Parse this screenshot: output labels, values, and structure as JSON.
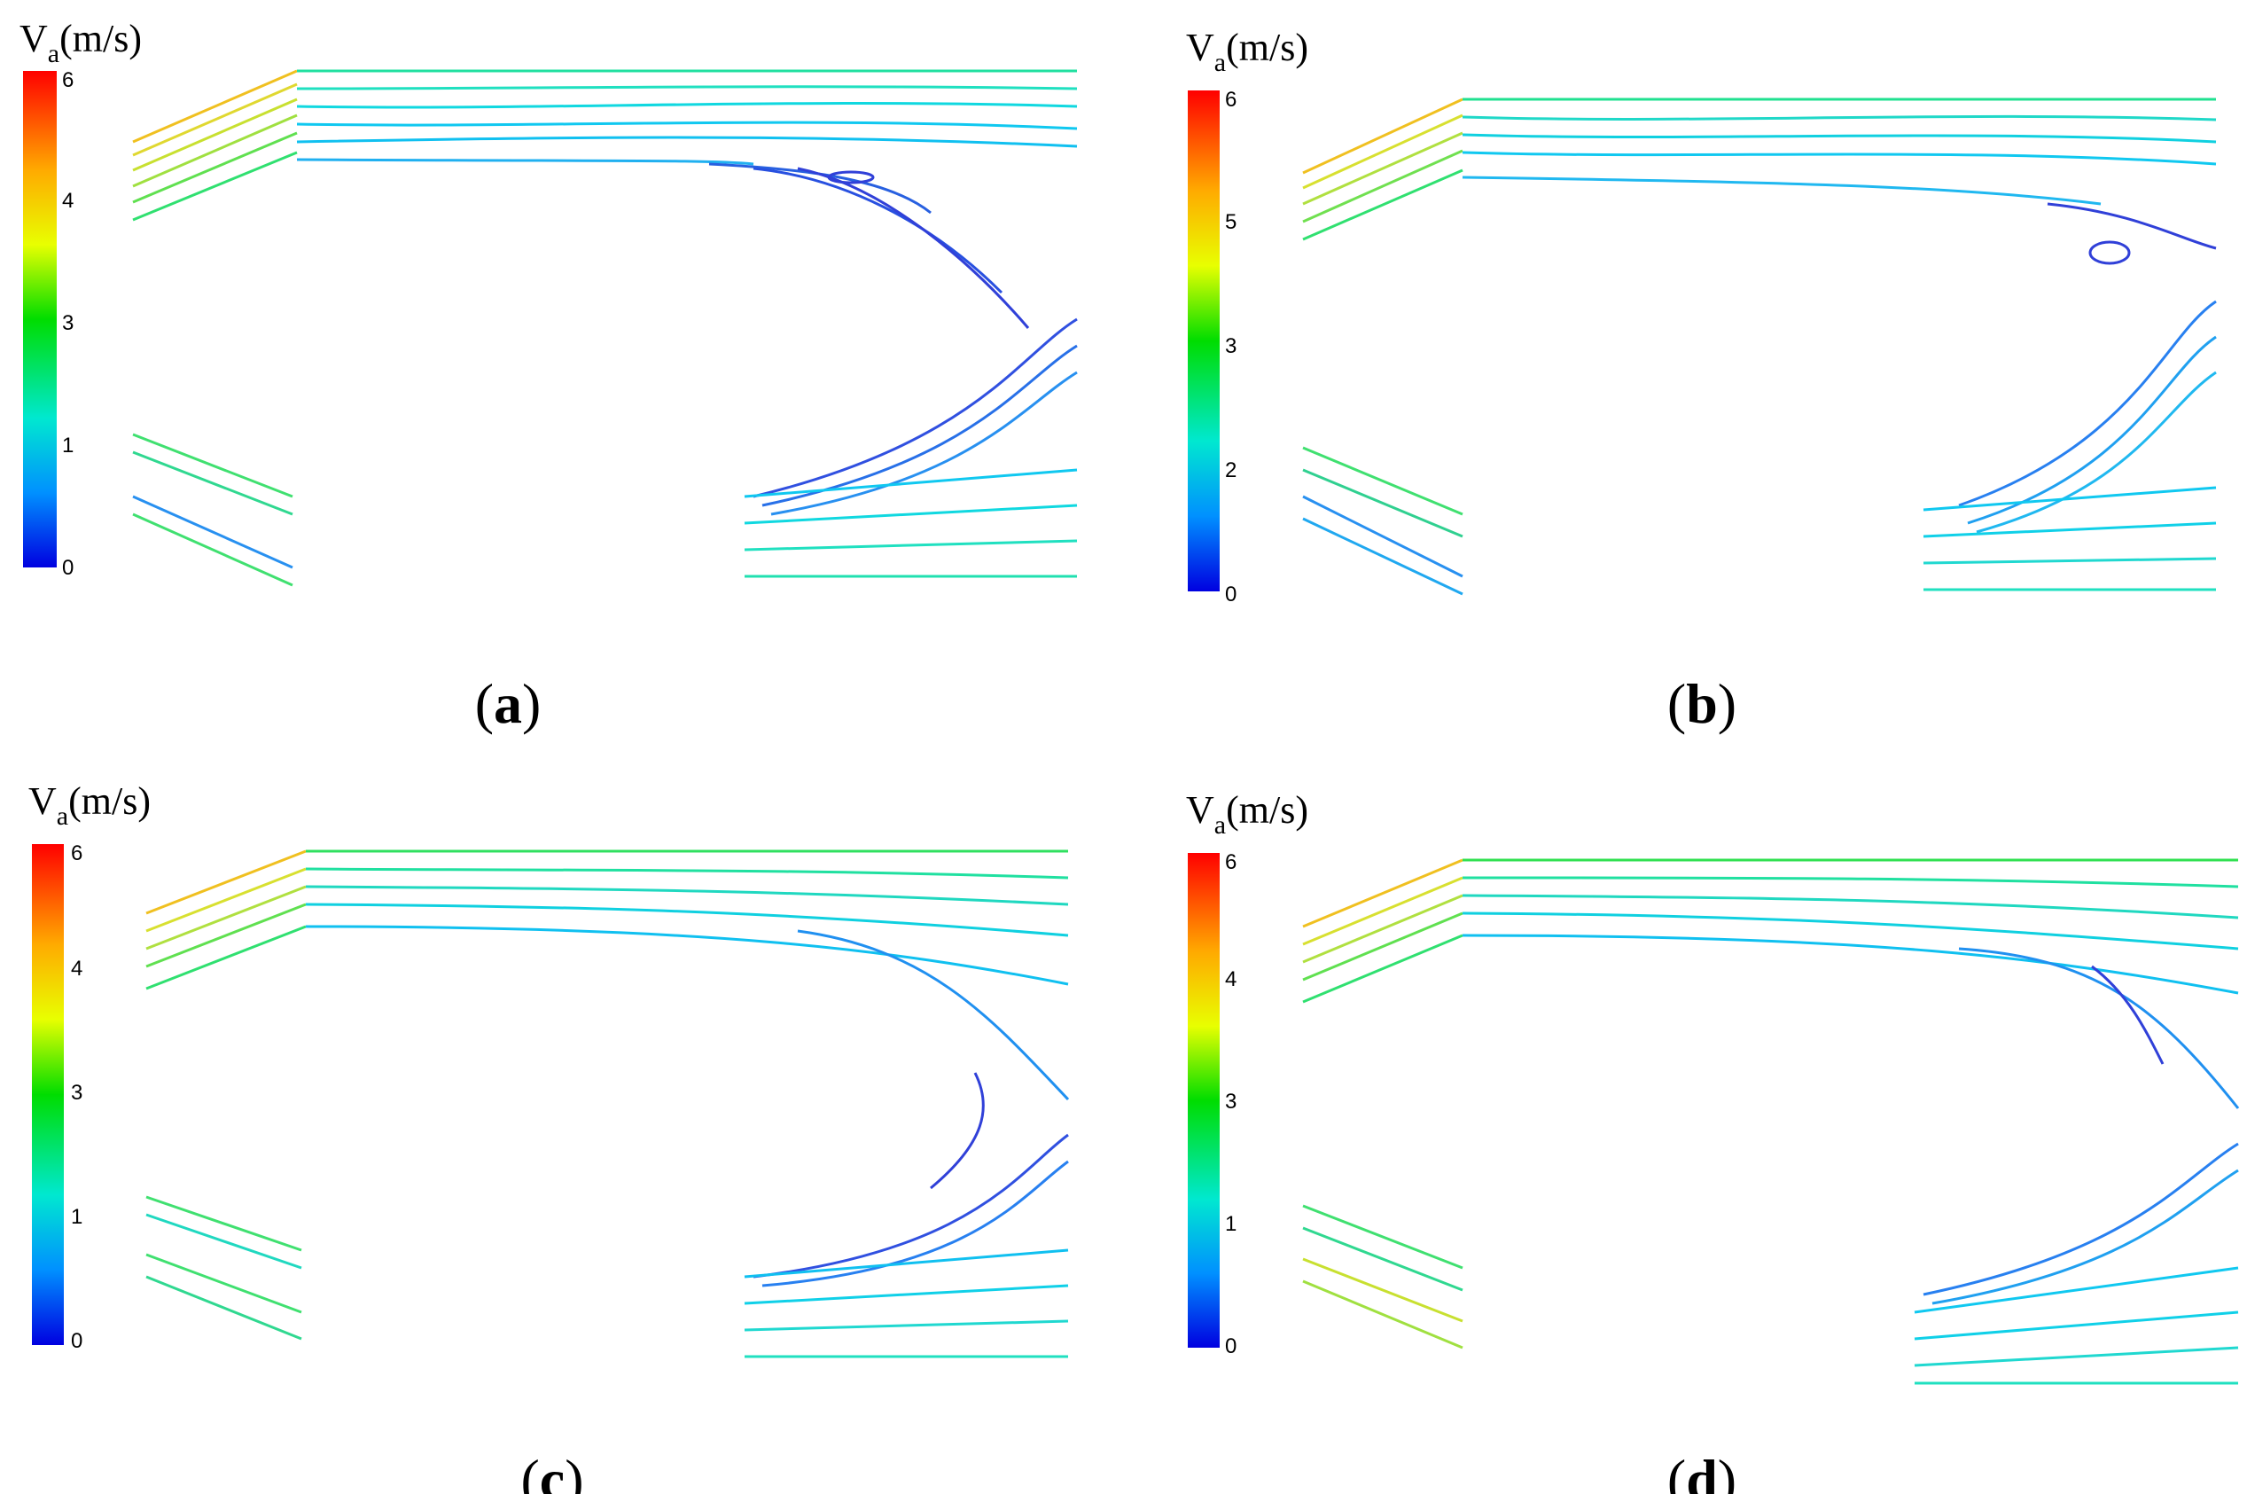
{
  "figure": {
    "legend": {
      "title_main": "V",
      "title_sub": "a",
      "title_unit": "(m/s)"
    },
    "panels": [
      {
        "id": "a",
        "label_open": "(",
        "label_letter": "a",
        "label_close": ")",
        "ticks": [
          "6",
          "4",
          "3",
          "1",
          "0"
        ],
        "cmap_stops": [
          "#ff0000",
          "#ffff00",
          "#00dd00",
          "#00ffff",
          "#0000ff"
        ]
      },
      {
        "id": "b",
        "label_open": "(",
        "label_letter": "b",
        "label_close": ")",
        "ticks": [
          "6",
          "5",
          "3",
          "2",
          "0"
        ],
        "cmap_stops": [
          "#ff0000",
          "#ffff00",
          "#00dd00",
          "#00ffff",
          "#0000ff"
        ]
      },
      {
        "id": "c",
        "label_open": "(",
        "label_letter": "c",
        "label_close": ")",
        "ticks": [
          "6",
          "4",
          "3",
          "1",
          "0"
        ],
        "cmap_stops": [
          "#ff0000",
          "#ffff00",
          "#00dd00",
          "#00ffff",
          "#0000ff"
        ]
      },
      {
        "id": "d",
        "label_open": "(",
        "label_letter": "d",
        "label_close": ")",
        "ticks": [
          "6",
          "4",
          "3",
          "1",
          "0"
        ],
        "cmap_stops": [
          "#ff0000",
          "#ffff00",
          "#00dd00",
          "#00ffff",
          "#0000ff"
        ]
      }
    ],
    "colors": {
      "stream_inlet_warm": "#d8e040",
      "stream_top": "#22e0b0",
      "stream_low_speed": "#2850e0",
      "stream_outlet": "#20e0c0"
    }
  }
}
